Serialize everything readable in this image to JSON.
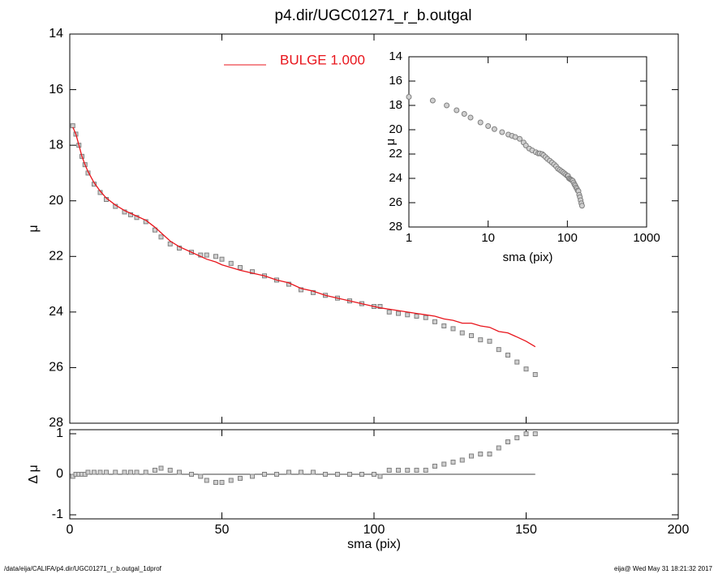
{
  "title": "p4.dir/UGC01271_r_b.outgal",
  "footer_left": "/data/eija/CALIFA/p4.dir/UGC01271_r_b.outgal_1dprof",
  "footer_right": "eija@  Wed May 31 18:21:32 2017",
  "chart_data": [
    {
      "type": "scatter",
      "ylabel": "μ",
      "xlim": [
        0,
        200
      ],
      "xticks": [
        0,
        50,
        100,
        150,
        200
      ],
      "ylim": [
        14,
        28
      ],
      "y_inverted": true,
      "yticks": [
        14,
        16,
        18,
        20,
        22,
        24,
        26,
        28
      ],
      "legend": "top-left",
      "x": [
        1,
        2,
        3,
        4,
        5,
        6,
        8,
        10,
        12,
        15,
        18,
        20,
        22,
        25,
        28,
        30,
        33,
        36,
        40,
        43,
        45,
        48,
        50,
        53,
        56,
        60,
        64,
        68,
        72,
        76,
        80,
        84,
        88,
        92,
        96,
        100,
        102,
        105,
        108,
        111,
        114,
        117,
        120,
        123,
        126,
        129,
        132,
        135,
        138,
        141,
        144,
        147,
        150,
        153
      ],
      "series": [
        {
          "color": "#808080",
          "marker": "square",
          "values": [
            17.3,
            17.6,
            18.0,
            18.4,
            18.7,
            19.0,
            19.4,
            19.7,
            19.95,
            20.2,
            20.4,
            20.5,
            20.6,
            20.75,
            21.05,
            21.3,
            21.55,
            21.7,
            21.85,
            21.95,
            21.95,
            22.0,
            22.1,
            22.25,
            22.4,
            22.55,
            22.7,
            22.85,
            23.0,
            23.2,
            23.3,
            23.4,
            23.5,
            23.6,
            23.7,
            23.8,
            23.8,
            24.0,
            24.05,
            24.1,
            24.15,
            24.2,
            24.35,
            24.5,
            24.6,
            24.75,
            24.85,
            25.0,
            25.05,
            25.35,
            25.55,
            25.8,
            26.05,
            26.25
          ]
        },
        {
          "name": "BULGE  1.000",
          "color": "#e8141b",
          "marker": "line",
          "values": [
            17.35,
            17.6,
            18.0,
            18.4,
            18.7,
            18.95,
            19.35,
            19.65,
            19.9,
            20.15,
            20.35,
            20.45,
            20.55,
            20.7,
            20.95,
            21.15,
            21.45,
            21.65,
            21.85,
            22.0,
            22.1,
            22.2,
            22.3,
            22.4,
            22.5,
            22.6,
            22.7,
            22.85,
            22.95,
            23.15,
            23.25,
            23.4,
            23.5,
            23.6,
            23.7,
            23.8,
            23.85,
            23.9,
            23.95,
            24.0,
            24.05,
            24.1,
            24.15,
            24.25,
            24.3,
            24.4,
            24.4,
            24.5,
            24.55,
            24.7,
            24.75,
            24.9,
            25.05,
            25.25
          ]
        }
      ]
    },
    {
      "type": "scatter",
      "ylabel": "Δ μ",
      "xlabel": "sma (pix)",
      "xlim": [
        0,
        200
      ],
      "xticks": [
        0,
        50,
        100,
        150,
        200
      ],
      "ylim": [
        -1.1,
        1.1
      ],
      "yticks": [
        -1,
        0,
        1
      ],
      "x": [
        1,
        2,
        3,
        4,
        5,
        6,
        8,
        10,
        12,
        15,
        18,
        20,
        22,
        25,
        28,
        30,
        33,
        36,
        40,
        43,
        45,
        48,
        50,
        53,
        56,
        60,
        64,
        68,
        72,
        76,
        80,
        84,
        88,
        92,
        96,
        100,
        102,
        105,
        108,
        111,
        114,
        117,
        120,
        123,
        126,
        129,
        132,
        135,
        138,
        141,
        144,
        147,
        150,
        153
      ],
      "series": [
        {
          "color": "#808080",
          "marker": "square",
          "values": [
            -0.05,
            0,
            0,
            0,
            0,
            0.05,
            0.05,
            0.05,
            0.05,
            0.05,
            0.05,
            0.05,
            0.05,
            0.05,
            0.1,
            0.15,
            0.1,
            0.05,
            0,
            -0.05,
            -0.15,
            -0.2,
            -0.2,
            -0.15,
            -0.1,
            -0.05,
            0,
            0,
            0.05,
            0.05,
            0.05,
            0,
            0,
            0,
            0,
            0,
            -0.05,
            0.1,
            0.1,
            0.1,
            0.1,
            0.1,
            0.2,
            0.25,
            0.3,
            0.35,
            0.45,
            0.5,
            0.5,
            0.65,
            0.8,
            0.9,
            1.0,
            1.0
          ]
        }
      ]
    },
    {
      "type": "scatter",
      "ylabel": "μ",
      "xlabel": "sma (pix)",
      "xscale": "log",
      "xlim": [
        1,
        1000
      ],
      "xticks": [
        1,
        10,
        100,
        1000
      ],
      "ylim": [
        14,
        28
      ],
      "y_inverted": true,
      "yticks": [
        14,
        16,
        18,
        20,
        22,
        24,
        26,
        28
      ],
      "x": [
        1,
        2,
        3,
        4,
        5,
        6,
        8,
        10,
        12,
        15,
        18,
        20,
        22,
        25,
        28,
        30,
        33,
        36,
        40,
        43,
        45,
        48,
        50,
        53,
        56,
        60,
        64,
        68,
        72,
        76,
        80,
        84,
        88,
        92,
        96,
        100,
        102,
        105,
        108,
        111,
        114,
        117,
        120,
        123,
        126,
        129,
        132,
        135,
        138,
        141,
        144,
        147,
        150,
        153
      ],
      "series": [
        {
          "color": "#808080",
          "marker": "circle",
          "values": [
            17.3,
            17.6,
            18.0,
            18.4,
            18.7,
            19.0,
            19.4,
            19.7,
            19.95,
            20.2,
            20.4,
            20.5,
            20.6,
            20.75,
            21.05,
            21.3,
            21.55,
            21.7,
            21.85,
            21.95,
            21.95,
            22.0,
            22.1,
            22.25,
            22.4,
            22.55,
            22.7,
            22.85,
            23.0,
            23.2,
            23.3,
            23.4,
            23.5,
            23.6,
            23.7,
            23.8,
            23.8,
            24.0,
            24.05,
            24.1,
            24.15,
            24.2,
            24.35,
            24.5,
            24.6,
            24.75,
            24.85,
            25.0,
            25.05,
            25.35,
            25.55,
            25.8,
            26.05,
            26.25
          ]
        }
      ]
    }
  ]
}
